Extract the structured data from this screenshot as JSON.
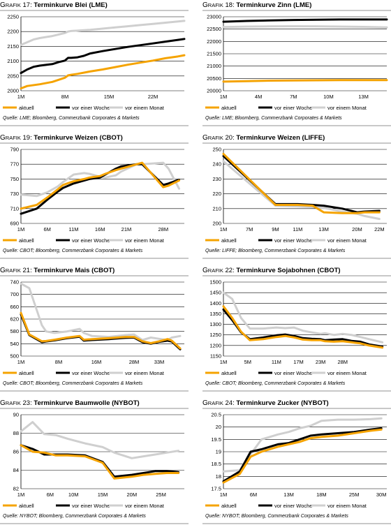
{
  "grafik_prefix": "G",
  "grafik_rest": "RAFIK",
  "colors": {
    "aktuell": "#f5a300",
    "woche": "#000000",
    "monat": "#cfcfcf"
  },
  "legend": [
    "aktuell",
    "vor einer Woche",
    "vor einem Monat"
  ],
  "chart_data": [
    {
      "type": "line",
      "number": "17",
      "title": "Terminkurve Blei (LME)",
      "source": "Quelle: LME; Bloomberg, Commerzbank Corporates & Markets",
      "ylim": [
        2000,
        2250
      ],
      "yticks": [
        2000,
        2050,
        2100,
        2150,
        2200,
        2250
      ],
      "xlim": [
        1,
        27
      ],
      "xticks": [
        1,
        8,
        15,
        22
      ],
      "xtick_labels": [
        "1M",
        "8M",
        "15M",
        "22M"
      ],
      "series": [
        {
          "name": "aktuell",
          "x": [
            1,
            2,
            4,
            6,
            7,
            8,
            8.5,
            9,
            10,
            12,
            14,
            16,
            18,
            20,
            22,
            24,
            26,
            27
          ],
          "y": [
            2008,
            2016,
            2022,
            2030,
            2037,
            2044,
            2052,
            2054,
            2057,
            2065,
            2072,
            2080,
            2088,
            2095,
            2102,
            2110,
            2116,
            2120
          ]
        },
        {
          "name": "vor einer Woche",
          "x": [
            1,
            2,
            3,
            4,
            6,
            7,
            8,
            8.5,
            9,
            10,
            11,
            12,
            14,
            16,
            18,
            20,
            22,
            24,
            26,
            27
          ],
          "y": [
            2060,
            2072,
            2081,
            2085,
            2090,
            2097,
            2102,
            2111,
            2111,
            2113,
            2118,
            2126,
            2134,
            2141,
            2148,
            2154,
            2160,
            2166,
            2172,
            2175
          ]
        },
        {
          "name": "vor einem Monat",
          "x": [
            1,
            2,
            3,
            4,
            6,
            7,
            8,
            8.5,
            9,
            10,
            12,
            14,
            16,
            18,
            20,
            22,
            24,
            26,
            27
          ],
          "y": [
            2155,
            2164,
            2173,
            2178,
            2185,
            2190,
            2195,
            2200,
            2202,
            2203,
            2206,
            2210,
            2214,
            2218,
            2222,
            2226,
            2230,
            2234,
            2236
          ]
        }
      ]
    },
    {
      "type": "line",
      "number": "18",
      "title": "Terminkurve Zinn (LME)",
      "source": "Quelle: LME; Bloomberg, Commerzbank Corporates & Markets",
      "ylim": [
        20000,
        23000
      ],
      "yticks": [
        20000,
        20500,
        21000,
        21500,
        22000,
        22500,
        23000
      ],
      "xlim": [
        1,
        15
      ],
      "xticks": [
        1,
        4,
        7,
        10,
        13
      ],
      "xtick_labels": [
        "1M",
        "4M",
        "7M",
        "10M",
        "13M"
      ],
      "series": [
        {
          "name": "aktuell",
          "x": [
            1,
            3,
            5,
            7,
            9,
            11,
            13,
            15
          ],
          "y": [
            20370,
            20390,
            20410,
            20420,
            20425,
            20430,
            20430,
            20430
          ]
        },
        {
          "name": "vor einer Woche",
          "x": [
            1,
            3,
            5,
            7,
            9,
            11,
            13,
            15
          ],
          "y": [
            22800,
            22830,
            22850,
            22870,
            22880,
            22890,
            22890,
            22890
          ]
        },
        {
          "name": "vor einem Monat",
          "x": [
            1,
            3,
            5,
            7,
            9,
            11,
            13,
            15
          ],
          "y": [
            22580,
            22600,
            22610,
            22615,
            22610,
            22600,
            22590,
            22570
          ]
        }
      ]
    },
    {
      "type": "line",
      "number": "19",
      "title": "Terminkurve Weizen (CBOT)",
      "source": "Quelle: CBOT; Bloomberg, Commerzbank Corporates & Markets",
      "ylim": [
        690,
        790
      ],
      "yticks": [
        690,
        710,
        730,
        750,
        770,
        790
      ],
      "xlim": [
        1,
        32
      ],
      "xticks": [
        1,
        6,
        11,
        16,
        21,
        28
      ],
      "xtick_labels": [
        "1M",
        "6M",
        "11M",
        "16M",
        "21M",
        "28M"
      ],
      "series": [
        {
          "name": "aktuell",
          "x": [
            1,
            4,
            6,
            8,
            9,
            11,
            13,
            14,
            16,
            17,
            19,
            20,
            23,
            24,
            28,
            29,
            31
          ],
          "y": [
            710,
            715,
            725,
            736,
            742,
            747,
            750,
            752,
            754,
            757,
            762,
            764,
            770,
            772,
            739,
            741,
            748
          ]
        },
        {
          "name": "vor einer Woche",
          "x": [
            1,
            4,
            6,
            8,
            9,
            11,
            13,
            14,
            16,
            17,
            19,
            20,
            23,
            24,
            28,
            29,
            31
          ],
          "y": [
            703,
            710,
            722,
            733,
            738,
            744,
            748,
            750,
            752,
            756,
            764,
            767,
            770,
            770,
            742,
            744,
            749
          ]
        },
        {
          "name": "vor einem Monat",
          "x": [
            1,
            4,
            6,
            8,
            9,
            11,
            13,
            14,
            16,
            17,
            19,
            20,
            23,
            24,
            28,
            29,
            31
          ],
          "y": [
            729,
            727,
            732,
            740,
            746,
            756,
            758,
            757,
            753,
            752,
            755,
            760,
            770,
            770,
            772,
            764,
            737
          ]
        }
      ]
    },
    {
      "type": "line",
      "number": "20",
      "title": "Terminkurve Weizen (LIFFE)",
      "source": "Quelle: LIFFE; Bloomberg, Commerzbank Corporates & Markets",
      "ylim": [
        200,
        250
      ],
      "yticks": [
        200,
        210,
        220,
        230,
        240,
        250
      ],
      "xlim": [
        1,
        23
      ],
      "xticks": [
        1,
        7,
        9,
        11,
        13,
        20,
        22
      ],
      "xtick_labels": [
        "1M",
        "7M",
        "9M",
        "11M",
        "13M",
        "20M",
        "22M"
      ],
      "xtick_pos": [
        1,
        4.5,
        8,
        11,
        14.5,
        19,
        22
      ],
      "series": [
        {
          "name": "aktuell",
          "x": [
            1,
            8,
            11,
            13,
            14.5,
            17,
            19,
            20,
            22
          ],
          "y": [
            247,
            212.5,
            212.5,
            212,
            207.5,
            207,
            207,
            207.5,
            207.5
          ]
        },
        {
          "name": "vor einer Woche",
          "x": [
            1,
            8,
            11,
            13,
            14.5,
            17,
            19,
            20,
            22
          ],
          "y": [
            245.5,
            213,
            213,
            212.5,
            212,
            210,
            207.5,
            208,
            208.5
          ]
        },
        {
          "name": "vor einem Monat",
          "x": [
            1,
            8,
            11,
            13,
            14.5,
            17,
            19,
            20,
            22
          ],
          "y": [
            242,
            212,
            211.5,
            211,
            210.5,
            208,
            206.5,
            205,
            203
          ]
        }
      ]
    },
    {
      "type": "line",
      "number": "21",
      "title": "Terminkurve Mais (CBOT)",
      "source": "Quelle: CBOT; Bloomberg, Commerzbank Corporates & Markets",
      "ylim": [
        500,
        740
      ],
      "yticks": [
        500,
        540,
        580,
        620,
        660,
        700,
        740
      ],
      "xlim": [
        1,
        40
      ],
      "xticks": [
        1,
        8,
        16,
        28,
        33
      ],
      "xtick_labels": [
        "1M",
        "8M",
        "16M",
        "28M",
        "33M"
      ],
      "xtick_pos": [
        1,
        10,
        19,
        28,
        34
      ],
      "series": [
        {
          "name": "aktuell",
          "x": [
            1,
            3,
            6,
            7,
            9,
            12,
            15,
            16,
            18,
            22,
            24,
            26,
            28,
            30,
            32,
            34,
            36,
            37,
            39
          ],
          "y": [
            640,
            570,
            548,
            549,
            553,
            560,
            565,
            553,
            555,
            558,
            560,
            562,
            562,
            548,
            542,
            548,
            555,
            550,
            525
          ]
        },
        {
          "name": "vor einer Woche",
          "x": [
            1,
            3,
            6,
            7,
            9,
            12,
            15,
            16,
            18,
            22,
            24,
            26,
            28,
            30,
            32,
            34,
            36,
            37,
            39
          ],
          "y": [
            635,
            568,
            545,
            547,
            551,
            558,
            563,
            550,
            552,
            555,
            557,
            559,
            560,
            545,
            540,
            546,
            550,
            547,
            522
          ]
        },
        {
          "name": "vor einem Monat",
          "x": [
            1,
            3,
            6,
            7,
            9,
            12,
            15,
            16,
            18,
            22,
            24,
            26,
            28,
            30,
            32,
            34,
            36,
            37,
            39
          ],
          "y": [
            735,
            720,
            600,
            580,
            575,
            580,
            588,
            575,
            565,
            562,
            565,
            568,
            570,
            552,
            560,
            556,
            552,
            560,
            565
          ]
        }
      ]
    },
    {
      "type": "line",
      "number": "22",
      "title": "Terminkurve Sojabohnen (CBOT)",
      "source": "Quelle: CBOT; Bloomberg, Commerzbank Corporates & Markets",
      "ylim": [
        1150,
        1500
      ],
      "yticks": [
        1150,
        1200,
        1250,
        1300,
        1350,
        1400,
        1450,
        1500
      ],
      "xlim": [
        1,
        38
      ],
      "xticks": [
        1,
        5,
        11,
        17,
        23,
        28
      ],
      "xtick_labels": [
        "1M",
        "5M",
        "11M",
        "17M",
        "23M",
        "28M"
      ],
      "xtick_pos": [
        1,
        6.5,
        13,
        18,
        23,
        28
      ],
      "series": [
        {
          "name": "aktuell",
          "x": [
            1,
            3,
            5,
            7,
            10,
            13,
            15,
            17,
            19,
            21,
            23,
            24,
            26,
            28,
            30,
            32,
            34,
            37
          ],
          "y": [
            1385,
            1330,
            1265,
            1225,
            1230,
            1240,
            1245,
            1238,
            1228,
            1225,
            1225,
            1220,
            1218,
            1220,
            1215,
            1210,
            1200,
            1190
          ]
        },
        {
          "name": "vor einer Woche",
          "x": [
            1,
            3,
            5,
            7,
            10,
            13,
            15,
            17,
            19,
            21,
            23,
            24,
            26,
            28,
            30,
            32,
            34,
            37
          ],
          "y": [
            1370,
            1320,
            1262,
            1230,
            1238,
            1248,
            1252,
            1245,
            1235,
            1232,
            1230,
            1225,
            1228,
            1230,
            1222,
            1218,
            1205,
            1195
          ]
        },
        {
          "name": "vor einem Monat",
          "x": [
            1,
            3,
            5,
            7,
            10,
            13,
            15,
            17,
            19,
            21,
            23,
            24,
            26,
            28,
            30,
            32,
            34,
            37
          ],
          "y": [
            1450,
            1420,
            1330,
            1280,
            1280,
            1285,
            1282,
            1285,
            1270,
            1262,
            1255,
            1258,
            1250,
            1255,
            1250,
            1240,
            1230,
            1215
          ]
        }
      ]
    },
    {
      "type": "line",
      "number": "23",
      "title": "Terminkurve Baumwolle (NYBOT)",
      "source": "Quelle: NYBOT; Bloomberg, Commerzbank Corporates & Markets",
      "ylim": [
        82,
        90
      ],
      "yticks": [
        82,
        84,
        86,
        88,
        90
      ],
      "xlim": [
        1,
        29
      ],
      "xticks": [
        1,
        6,
        10,
        15,
        20,
        25
      ],
      "xtick_labels": [
        "1M",
        "6M",
        "10M",
        "15M",
        "20M",
        "25M"
      ],
      "series": [
        {
          "name": "aktuell",
          "x": [
            1,
            3,
            5,
            7,
            9,
            12,
            15,
            17,
            20,
            22,
            24,
            26,
            28
          ],
          "y": [
            86.7,
            86.0,
            85.9,
            85.6,
            85.6,
            85.5,
            84.8,
            83.1,
            83.3,
            83.5,
            83.6,
            83.7,
            83.7
          ]
        },
        {
          "name": "vor einer Woche",
          "x": [
            1,
            3,
            5,
            7,
            9,
            12,
            15,
            17,
            20,
            22,
            24,
            26,
            28
          ],
          "y": [
            86.7,
            86.3,
            85.7,
            85.7,
            85.7,
            85.6,
            84.9,
            83.3,
            83.5,
            83.7,
            83.9,
            83.9,
            83.8
          ]
        },
        {
          "name": "vor einem Monat",
          "x": [
            1,
            3,
            5,
            7,
            9,
            12,
            15,
            17,
            20,
            22,
            24,
            26,
            28
          ],
          "y": [
            88.2,
            89.2,
            87.9,
            87.8,
            87.4,
            86.9,
            86.5,
            85.9,
            85.3,
            85.5,
            85.7,
            85.9,
            86.1
          ]
        }
      ]
    },
    {
      "type": "line",
      "number": "24",
      "title": "Terminkurve Zucker (NYBOT)",
      "source": "Quelle: NYBOT; Bloomberg, Commerzbank Corporates & Markets",
      "ylim": [
        17.5,
        20.5
      ],
      "yticks": [
        17.5,
        18.0,
        18.5,
        19.0,
        19.5,
        20.0,
        20.5
      ],
      "xlim": [
        1,
        31
      ],
      "xticks": [
        1,
        6,
        13,
        18,
        25,
        30
      ],
      "xtick_labels": [
        "1M",
        "6M",
        "13M",
        "18M",
        "25M",
        "30M"
      ],
      "xtick_pos": [
        1,
        6.5,
        13,
        19,
        25,
        30
      ],
      "series": [
        {
          "name": "aktuell",
          "x": [
            1,
            4,
            6,
            8,
            11,
            13,
            15,
            17,
            19,
            22,
            25,
            28,
            30
          ],
          "y": [
            17.75,
            18.1,
            18.8,
            19.0,
            19.2,
            19.3,
            19.4,
            19.55,
            19.6,
            19.65,
            19.75,
            19.85,
            19.9
          ]
        },
        {
          "name": "vor einer Woche",
          "x": [
            1,
            4,
            6,
            8,
            11,
            13,
            15,
            17,
            19,
            22,
            25,
            28,
            30
          ],
          "y": [
            17.8,
            18.2,
            19.0,
            19.1,
            19.3,
            19.35,
            19.5,
            19.65,
            19.7,
            19.75,
            19.8,
            19.9,
            19.95
          ]
        },
        {
          "name": "vor einem Monat",
          "x": [
            1,
            4,
            6,
            8,
            11,
            13,
            15,
            17,
            19,
            22,
            25,
            28,
            30
          ],
          "y": [
            18.2,
            18.25,
            18.9,
            19.5,
            19.7,
            19.8,
            19.95,
            20.05,
            20.25,
            20.3,
            20.3,
            20.32,
            20.35
          ]
        }
      ]
    }
  ]
}
